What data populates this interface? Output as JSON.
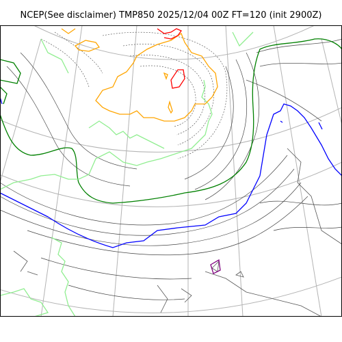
{
  "title": "NCEP(See disclaimer) TMP850 2025/12/04 00Z FT=120 (init 2900Z)",
  "colors": {
    "frame": "#000000",
    "graticule": "#b3b3b3",
    "coastline": "#555555",
    "contour_thin": "#444444",
    "contour_blue": "#0000ff",
    "contour_green": "#008000",
    "contour_lightgreen": "#90ee90",
    "contour_orange": "#ffa500",
    "contour_red": "#ff0000",
    "contour_purple": "#800080"
  }
}
